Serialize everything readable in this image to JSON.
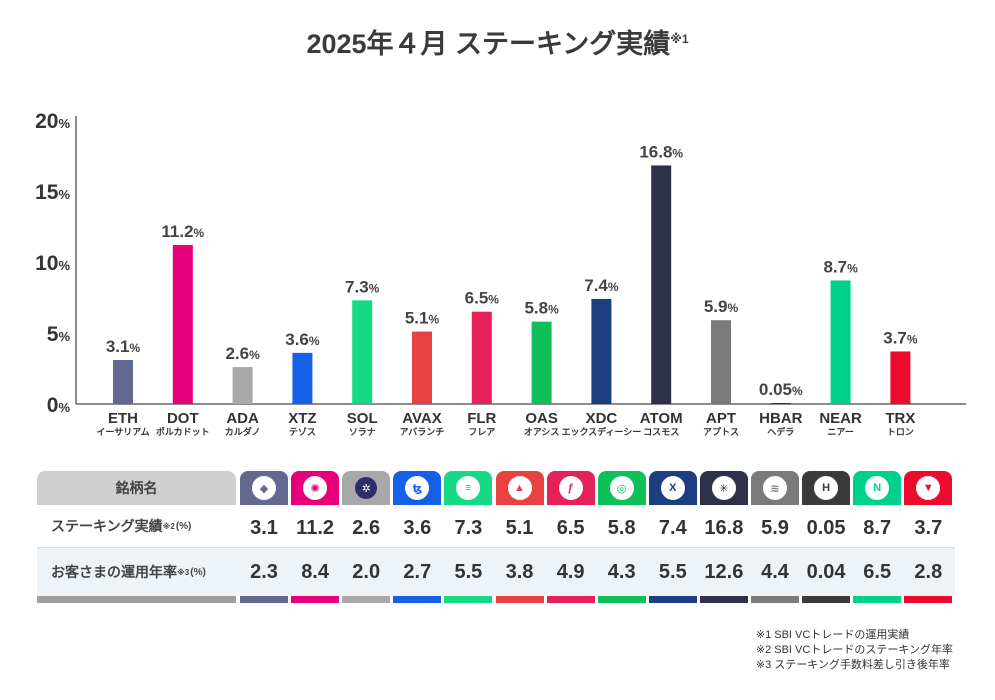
{
  "title": {
    "text": "2025年４月 ステーキング実績",
    "mark": "※1"
  },
  "colors": {
    "ETH": "#626890",
    "DOT": "#e6007a",
    "ADA": "#a8a8a8",
    "XTZ": "#1560e8",
    "SOL": "#16d985",
    "AVAX": "#e84142",
    "FLR": "#e62058",
    "OAS": "#0fc05a",
    "XDC": "#1b3e80",
    "ATOM": "#2e3148",
    "APT": "#7a7a7a",
    "HBAR": "#3a3a3a",
    "NEAR": "#00d18a",
    "TRX": "#ec0a2e"
  },
  "chart_data": {
    "type": "bar",
    "title": "2025年４月 ステーキング実績※1",
    "categories": [
      "ETH",
      "DOT",
      "ADA",
      "XTZ",
      "SOL",
      "AVAX",
      "FLR",
      "OAS",
      "XDC",
      "ATOM",
      "APT",
      "HBAR",
      "NEAR",
      "TRX"
    ],
    "category_kana": [
      "イーサリアム",
      "ポルカドット",
      "カルダノ",
      "テゾス",
      "ソラナ",
      "アバランチ",
      "フレア",
      "オアシス",
      "エックスディーシー",
      "コスモス",
      "アプトス",
      "ヘデラ",
      "ニアー",
      "トロン"
    ],
    "values": [
      3.1,
      11.2,
      2.6,
      3.6,
      7.3,
      5.1,
      6.5,
      5.8,
      7.4,
      16.8,
      5.9,
      0.05,
      8.7,
      3.7
    ],
    "value_labels": [
      "3.1",
      "11.2",
      "2.6",
      "3.6",
      "7.3",
      "5.1",
      "6.5",
      "5.8",
      "7.4",
      "16.8",
      "5.9",
      "0.05",
      "8.7",
      "3.7"
    ],
    "unit": "%",
    "ylim": [
      0,
      20
    ],
    "yticks": [
      "0",
      "5",
      "10",
      "15",
      "20"
    ],
    "grid": false
  },
  "table": {
    "header_label": "銘柄名",
    "rows": [
      {
        "label": "ステーキング実績",
        "mark": "※2",
        "unit": "(%)",
        "values": [
          "3.1",
          "11.2",
          "2.6",
          "3.6",
          "7.3",
          "5.1",
          "6.5",
          "5.8",
          "7.4",
          "16.8",
          "5.9",
          "0.05",
          "8.7",
          "3.7"
        ]
      },
      {
        "label": "お客さまの運用年率",
        "mark": "※3",
        "unit": "(%)",
        "values": [
          "2.3",
          "8.4",
          "2.0",
          "2.7",
          "5.5",
          "3.8",
          "4.9",
          "4.3",
          "5.5",
          "12.6",
          "4.4",
          "0.04",
          "6.5",
          "2.8"
        ]
      }
    ],
    "icons": [
      "ethereum-icon",
      "polkadot-icon",
      "cardano-icon",
      "tezos-icon",
      "solana-icon",
      "avalanche-icon",
      "flare-icon",
      "oasys-icon",
      "xdc-icon",
      "cosmos-icon",
      "aptos-icon",
      "hedera-icon",
      "near-icon",
      "tron-icon"
    ]
  },
  "footnotes": [
    "※1  SBI VCトレードの運用実績",
    "※2  SBI VCトレードのステーキング年率",
    "※3  ステーキング手数料差し引き後年率"
  ]
}
